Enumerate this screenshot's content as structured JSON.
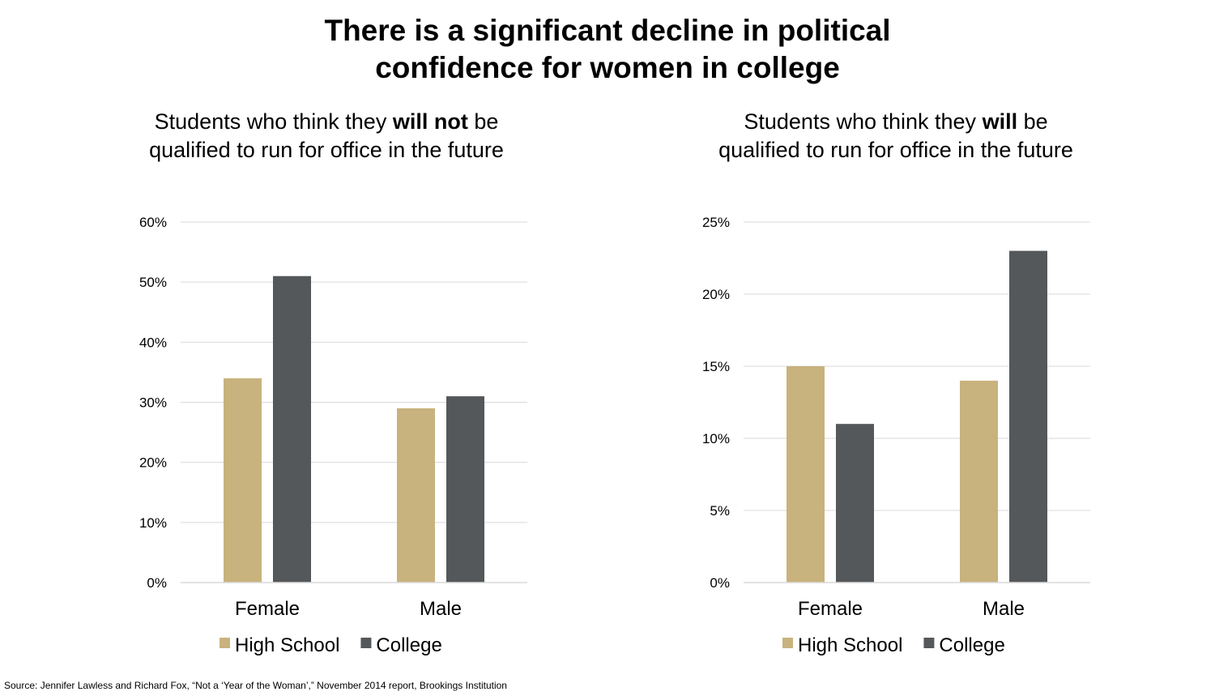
{
  "title": {
    "line1": "There is a significant decline in political",
    "line2": "confidence for women in college"
  },
  "source": "Source: Jennifer Lawless and Richard Fox, “Not a ‘Year of the Woman’,” November 2014 report, Brookings Institution",
  "colors": {
    "high_school": "#c8b27e",
    "college": "#55585a",
    "grid": "#d9d9d9"
  },
  "chart_data": [
    {
      "type": "bar",
      "subtitle": {
        "line1_pre": "Students who think they ",
        "line1_bold": "will not",
        "line1_post": " be",
        "line2": "qualified to run for office in the future"
      },
      "categories": [
        "Female",
        "Male"
      ],
      "series": [
        {
          "name": "High School",
          "values": [
            34,
            29
          ]
        },
        {
          "name": "College",
          "values": [
            51,
            31
          ]
        }
      ],
      "ylim": [
        0,
        60
      ],
      "yticks": [
        0,
        10,
        20,
        30,
        40,
        50,
        60
      ],
      "ytick_labels": [
        "0%",
        "10%",
        "20%",
        "30%",
        "40%",
        "50%",
        "60%"
      ],
      "grid": true,
      "legend": "bottom"
    },
    {
      "type": "bar",
      "subtitle": {
        "line1_pre": "Students who think they ",
        "line1_bold": "will",
        "line1_post": " be",
        "line2": "qualified to run for office in the future"
      },
      "categories": [
        "Female",
        "Male"
      ],
      "series": [
        {
          "name": "High School",
          "values": [
            15,
            14
          ]
        },
        {
          "name": "College",
          "values": [
            11,
            23
          ]
        }
      ],
      "ylim": [
        0,
        25
      ],
      "yticks": [
        0,
        5,
        10,
        15,
        20,
        25
      ],
      "ytick_labels": [
        "0%",
        "5%",
        "10%",
        "15%",
        "20%",
        "25%"
      ],
      "grid": true,
      "legend": "bottom"
    }
  ]
}
